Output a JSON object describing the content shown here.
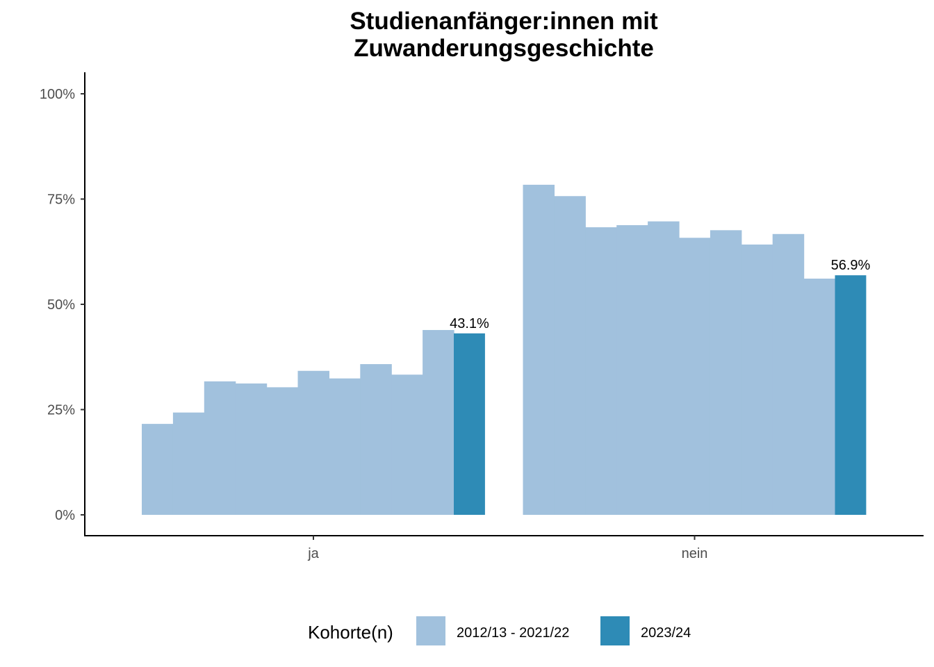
{
  "chart_data": {
    "type": "bar",
    "title_lines": [
      "Studienanfänger:innen mit",
      "Zuwanderungsgeschichte"
    ],
    "xlabel": "",
    "ylabel": "",
    "categories": [
      "ja",
      "nein"
    ],
    "ylim": [
      0,
      1.05
    ],
    "y_ticks": [
      {
        "value": 0,
        "label": "0%"
      },
      {
        "value": 0.25,
        "label": "25%"
      },
      {
        "value": 0.5,
        "label": "50%"
      },
      {
        "value": 0.75,
        "label": "75%"
      },
      {
        "value": 1.0,
        "label": "100%"
      }
    ],
    "series": [
      {
        "name": "2012/13 - 2021/22",
        "color": "#a1c1dd",
        "values_by_category": {
          "ja": [
            0.216,
            0.243,
            0.317,
            0.312,
            0.303,
            0.342,
            0.324,
            0.358,
            0.333,
            0.439
          ],
          "nein": [
            0.784,
            0.757,
            0.683,
            0.688,
            0.697,
            0.658,
            0.676,
            0.642,
            0.667,
            0.561
          ]
        }
      },
      {
        "name": "2023/24",
        "color": "#2e8bb6",
        "values_by_category": {
          "ja": [
            0.431
          ],
          "nein": [
            0.569
          ]
        },
        "data_labels": {
          "ja": "43.1%",
          "nein": "56.9%"
        }
      }
    ],
    "legend": {
      "title": "Kohorte(n)",
      "position": "bottom",
      "entries": [
        {
          "label": "2012/13 - 2021/22",
          "color": "#a1c1dd"
        },
        {
          "label": "2023/24",
          "color": "#2e8bb6"
        }
      ]
    },
    "grid": false
  }
}
